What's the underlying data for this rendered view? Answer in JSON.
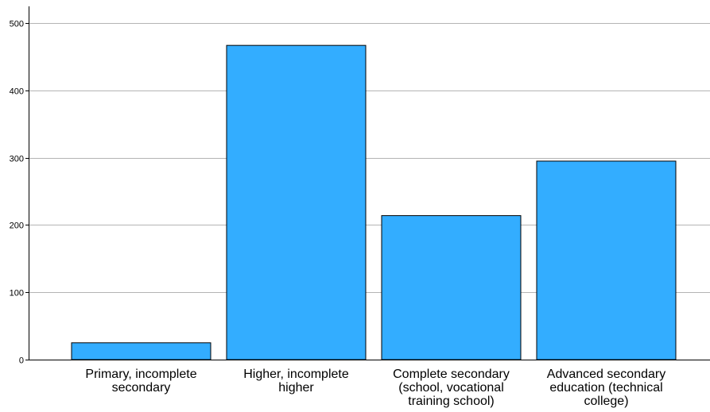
{
  "chart_data": {
    "type": "bar",
    "title": "",
    "xlabel": "",
    "ylabel": "",
    "categories": [
      "Primary, incomplete secondary",
      "Higher, incomplete higher",
      "Complete secondary (school, vocational training school)",
      "Advanced secondary education (technical college)"
    ],
    "category_label_lines": [
      [
        "Primary, incomplete",
        "secondary"
      ],
      [
        "Higher, incomplete",
        "higher"
      ],
      [
        "Complete secondary",
        "(school, vocational",
        "training school)"
      ],
      [
        "Advanced secondary",
        "education (technical",
        "college)"
      ]
    ],
    "values": [
      25,
      467,
      214,
      295
    ],
    "ylim": [
      0,
      525
    ],
    "yticks": [
      0,
      100,
      200,
      300,
      400,
      500
    ],
    "grid": true,
    "legend": "none",
    "colors": {
      "bar_fill": "#33adff",
      "bar_stroke": "#000000",
      "grid": "#b4b4b4",
      "axis": "#000000"
    }
  }
}
